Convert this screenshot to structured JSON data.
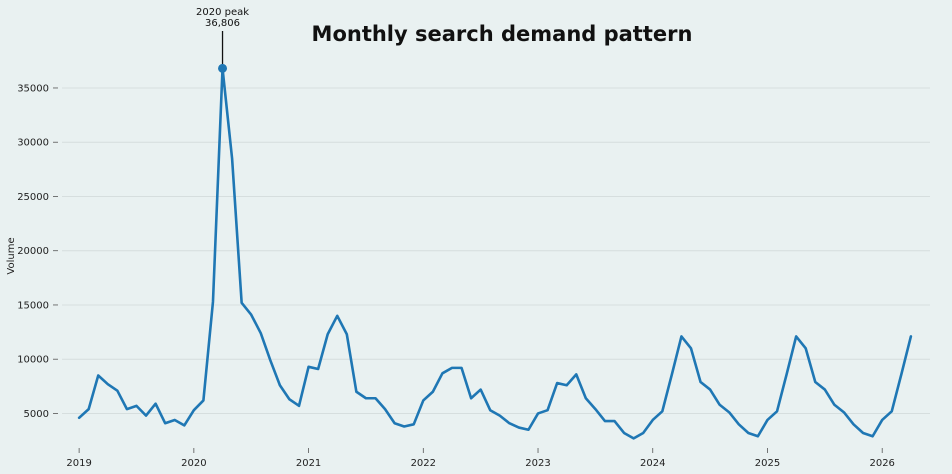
{
  "chart_data": {
    "type": "line",
    "title": "Monthly search demand pattern",
    "xlabel": "",
    "ylabel": "Volume",
    "x_ticks": [
      "2019",
      "2020",
      "2021",
      "2022",
      "2023",
      "2024",
      "2025",
      "2026"
    ],
    "y_ticks": [
      5000,
      10000,
      15000,
      20000,
      25000,
      30000,
      35000
    ],
    "ylim": [
      2000,
      38500
    ],
    "xlim": [
      "2018-11",
      "2026-06"
    ],
    "grid": "horizontal",
    "color": "#1f77b4",
    "series": [
      {
        "x": [
          "2019-01",
          "2019-02",
          "2019-03",
          "2019-04",
          "2019-05",
          "2019-06",
          "2019-07",
          "2019-08",
          "2019-09",
          "2019-10",
          "2019-11",
          "2019-12",
          "2020-01",
          "2020-02",
          "2020-03",
          "2020-04",
          "2020-05",
          "2020-06",
          "2020-07",
          "2020-08",
          "2020-09",
          "2020-10",
          "2020-11",
          "2020-12",
          "2021-01",
          "2021-02",
          "2021-03",
          "2021-04",
          "2021-05",
          "2021-06",
          "2021-07",
          "2021-08",
          "2021-09",
          "2021-10",
          "2021-11",
          "2021-12",
          "2022-01",
          "2022-02",
          "2022-03",
          "2022-04",
          "2022-05",
          "2022-06",
          "2022-07",
          "2022-08",
          "2022-09",
          "2022-10",
          "2022-11",
          "2022-12",
          "2023-01",
          "2023-02",
          "2023-03",
          "2023-04",
          "2023-05",
          "2023-06",
          "2023-07",
          "2023-08",
          "2023-09",
          "2023-10",
          "2023-11",
          "2023-12",
          "2024-01",
          "2024-02",
          "2024-03",
          "2024-04",
          "2024-05",
          "2024-06",
          "2024-07",
          "2024-08",
          "2024-09",
          "2024-10",
          "2024-11",
          "2024-12",
          "2025-01",
          "2025-02",
          "2025-03",
          "2025-04",
          "2025-05",
          "2025-06",
          "2025-07",
          "2025-08",
          "2025-09",
          "2025-10",
          "2025-11",
          "2025-12",
          "2026-01",
          "2026-02",
          "2026-03",
          "2026-04"
        ],
        "values": [
          4600,
          5400,
          8500,
          7700,
          7100,
          5400,
          5700,
          4800,
          5900,
          4100,
          4400,
          3900,
          5300,
          6200,
          15300,
          36806,
          28500,
          15200,
          14100,
          12400,
          9900,
          7600,
          6300,
          5700,
          9300,
          9100,
          12300,
          14000,
          12300,
          7000,
          6400,
          6400,
          5400,
          4100,
          3800,
          4000,
          6200,
          7000,
          8700,
          9200,
          9200,
          6400,
          7200,
          5300,
          4800,
          4100,
          3700,
          3500,
          5000,
          5300,
          7800,
          7600,
          8600,
          6400,
          5400,
          4300,
          4300,
          3200,
          2700,
          3200,
          4400,
          5200,
          8600,
          12100,
          11000,
          7900,
          7200,
          5800,
          5100,
          4000,
          3200,
          2900,
          4400,
          5200,
          8600,
          12100,
          11000,
          7900,
          7200,
          5800,
          5100,
          4000,
          3200,
          2900,
          4400,
          5200,
          8600,
          12100
        ]
      }
    ],
    "annotation": {
      "x": "2020-04",
      "y": 36806,
      "label_line1": "2020 peak",
      "label_line2": "36,806"
    }
  }
}
